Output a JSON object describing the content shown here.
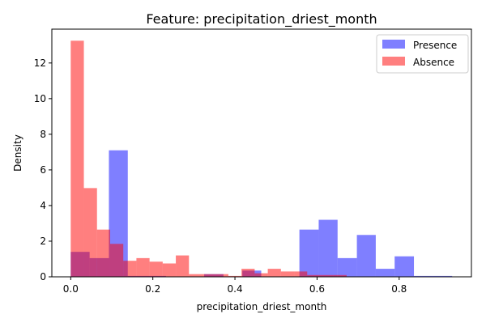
{
  "chart_data": {
    "type": "bar",
    "title": "Feature: precipitation_driest_month",
    "xlabel": "precipitation_driest_month",
    "ylabel": "Density",
    "xlim": [
      -0.046,
      0.976
    ],
    "ylim": [
      0,
      13.9
    ],
    "xticks": [
      {
        "value": 0.0,
        "label": "0.0"
      },
      {
        "value": 0.2,
        "label": "0.2"
      },
      {
        "value": 0.4,
        "label": "0.4"
      },
      {
        "value": 0.6,
        "label": "0.6"
      },
      {
        "value": 0.8,
        "label": "0.8"
      }
    ],
    "yticks": [
      {
        "value": 0,
        "label": "0"
      },
      {
        "value": 2,
        "label": "2"
      },
      {
        "value": 4,
        "label": "4"
      },
      {
        "value": 6,
        "label": "6"
      },
      {
        "value": 8,
        "label": "8"
      },
      {
        "value": 10,
        "label": "10"
      },
      {
        "value": 12,
        "label": "12"
      }
    ],
    "legend_position": "top-right",
    "grid": false,
    "series": [
      {
        "name": "Presence",
        "color": "#0000ff",
        "alpha": 0.5,
        "bins": [
          {
            "x0": 0.0,
            "x1": 0.046,
            "value": 1.4
          },
          {
            "x0": 0.046,
            "x1": 0.093,
            "value": 1.05
          },
          {
            "x0": 0.093,
            "x1": 0.139,
            "value": 7.1
          },
          {
            "x0": 0.139,
            "x1": 0.186,
            "value": 0.05
          },
          {
            "x0": 0.186,
            "x1": 0.232,
            "value": 0.05
          },
          {
            "x0": 0.232,
            "x1": 0.279,
            "value": 0.0
          },
          {
            "x0": 0.279,
            "x1": 0.325,
            "value": 0.0
          },
          {
            "x0": 0.325,
            "x1": 0.372,
            "value": 0.15
          },
          {
            "x0": 0.372,
            "x1": 0.418,
            "value": 0.0
          },
          {
            "x0": 0.418,
            "x1": 0.464,
            "value": 0.35
          },
          {
            "x0": 0.464,
            "x1": 0.511,
            "value": 0.0
          },
          {
            "x0": 0.511,
            "x1": 0.557,
            "value": 0.0
          },
          {
            "x0": 0.557,
            "x1": 0.604,
            "value": 2.65
          },
          {
            "x0": 0.604,
            "x1": 0.65,
            "value": 3.2
          },
          {
            "x0": 0.65,
            "x1": 0.697,
            "value": 1.05
          },
          {
            "x0": 0.697,
            "x1": 0.743,
            "value": 2.35
          },
          {
            "x0": 0.743,
            "x1": 0.789,
            "value": 0.45
          },
          {
            "x0": 0.789,
            "x1": 0.836,
            "value": 1.15
          },
          {
            "x0": 0.836,
            "x1": 0.882,
            "value": 0.05
          },
          {
            "x0": 0.882,
            "x1": 0.929,
            "value": 0.05
          }
        ]
      },
      {
        "name": "Absence",
        "color": "#ff0000",
        "alpha": 0.5,
        "bins": [
          {
            "x0": 0.0,
            "x1": 0.032,
            "value": 13.25
          },
          {
            "x0": 0.032,
            "x1": 0.064,
            "value": 4.98
          },
          {
            "x0": 0.064,
            "x1": 0.096,
            "value": 2.65
          },
          {
            "x0": 0.096,
            "x1": 0.128,
            "value": 1.85
          },
          {
            "x0": 0.128,
            "x1": 0.16,
            "value": 0.9
          },
          {
            "x0": 0.16,
            "x1": 0.192,
            "value": 1.05
          },
          {
            "x0": 0.192,
            "x1": 0.224,
            "value": 0.85
          },
          {
            "x0": 0.224,
            "x1": 0.256,
            "value": 0.75
          },
          {
            "x0": 0.256,
            "x1": 0.288,
            "value": 1.2
          },
          {
            "x0": 0.288,
            "x1": 0.32,
            "value": 0.15
          },
          {
            "x0": 0.32,
            "x1": 0.352,
            "value": 0.15
          },
          {
            "x0": 0.352,
            "x1": 0.384,
            "value": 0.15
          },
          {
            "x0": 0.384,
            "x1": 0.416,
            "value": 0.05
          },
          {
            "x0": 0.416,
            "x1": 0.448,
            "value": 0.45
          },
          {
            "x0": 0.448,
            "x1": 0.48,
            "value": 0.2
          },
          {
            "x0": 0.48,
            "x1": 0.512,
            "value": 0.45
          },
          {
            "x0": 0.512,
            "x1": 0.544,
            "value": 0.3
          },
          {
            "x0": 0.544,
            "x1": 0.576,
            "value": 0.3
          },
          {
            "x0": 0.576,
            "x1": 0.608,
            "value": 0.1
          },
          {
            "x0": 0.608,
            "x1": 0.64,
            "value": 0.1
          },
          {
            "x0": 0.64,
            "x1": 0.672,
            "value": 0.1
          }
        ]
      }
    ]
  }
}
